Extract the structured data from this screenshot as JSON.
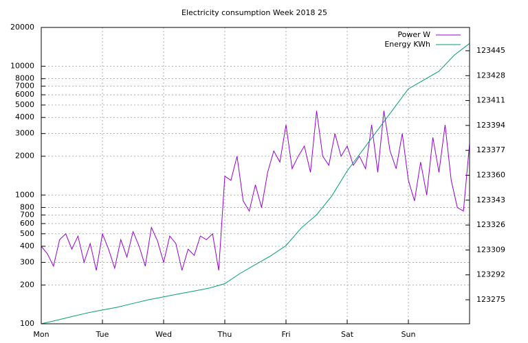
{
  "chart_data": {
    "type": "line",
    "title": "Electricity consumption Week 2018 25",
    "log_y": true,
    "grid": true,
    "legend": "top-right",
    "xlim": [
      0,
      7
    ],
    "xticks": [
      {
        "value": 0,
        "label": "Mon"
      },
      {
        "value": 1,
        "label": "Tue"
      },
      {
        "value": 2,
        "label": "Wed"
      },
      {
        "value": 3,
        "label": "Thu"
      },
      {
        "value": 4,
        "label": "Fri"
      },
      {
        "value": 5,
        "label": "Sat"
      },
      {
        "value": 6,
        "label": "Sun"
      }
    ],
    "ylim": [
      100,
      20000
    ],
    "yticks": [
      100,
      200,
      300,
      400,
      500,
      600,
      700,
      800,
      1000,
      2000,
      3000,
      4000,
      5000,
      6000,
      7000,
      8000,
      10000,
      20000
    ],
    "y2lim": [
      123258.6,
      123460.9
    ],
    "y2ticks": [
      123275,
      123292,
      123309,
      123326,
      123343,
      123360,
      123377,
      123394,
      123411,
      123428,
      123445
    ],
    "series": [
      {
        "name": "Power W",
        "color": "#9400d3",
        "x": [
          0,
          0.1,
          0.2,
          0.3,
          0.4,
          0.5,
          0.6,
          0.7,
          0.8,
          0.9,
          1,
          1.1,
          1.2,
          1.3,
          1.4,
          1.5,
          1.6,
          1.7,
          1.8,
          1.9,
          2,
          2.1,
          2.2,
          2.3,
          2.4,
          2.5,
          2.6,
          2.7,
          2.8,
          2.9,
          3,
          3.1,
          3.2,
          3.3,
          3.4,
          3.5,
          3.6,
          3.7,
          3.8,
          3.9,
          4,
          4.1,
          4.2,
          4.3,
          4.4,
          4.5,
          4.6,
          4.7,
          4.8,
          4.9,
          5,
          5.1,
          5.2,
          5.3,
          5.4,
          5.5,
          5.6,
          5.7,
          5.8,
          5.9,
          6,
          6.1,
          6.2,
          6.3,
          6.4,
          6.5,
          6.6,
          6.7,
          6.8,
          6.9,
          7
        ],
        "values": [
          400,
          350,
          280,
          450,
          500,
          380,
          480,
          300,
          420,
          260,
          500,
          380,
          270,
          450,
          330,
          520,
          400,
          280,
          560,
          440,
          300,
          480,
          420,
          260,
          380,
          340,
          480,
          450,
          500,
          260,
          1400,
          1300,
          2000,
          900,
          750,
          1200,
          800,
          1500,
          2200,
          1800,
          3500,
          1600,
          2000,
          2400,
          1500,
          4500,
          2000,
          1700,
          3000,
          2000,
          2400,
          1700,
          2000,
          1600,
          3500,
          1500,
          4500,
          2200,
          1600,
          3000,
          1300,
          900,
          1800,
          1000,
          2800,
          1500,
          3500,
          1300,
          800,
          750,
          2500
        ]
      },
      {
        "name": "Energy KWh",
        "color": "#009e73",
        "axis": "y2",
        "x": [
          0,
          0.25,
          0.5,
          0.75,
          1,
          1.25,
          1.5,
          1.75,
          2,
          2.25,
          2.5,
          2.75,
          3,
          3.25,
          3.5,
          3.75,
          4,
          4.25,
          4.5,
          4.75,
          5,
          5.25,
          5.5,
          5.75,
          6,
          6.25,
          6.5,
          6.75,
          7
        ],
        "values": [
          123258.6,
          123261,
          123263.5,
          123266,
          123268,
          123270,
          123272.5,
          123275,
          123277,
          123279,
          123281,
          123283,
          123286,
          123293,
          123299,
          123305,
          123312,
          123324,
          123333,
          123346,
          123363,
          123377,
          123391,
          123405,
          123419,
          123425,
          123431,
          123442,
          123450
        ]
      }
    ]
  }
}
